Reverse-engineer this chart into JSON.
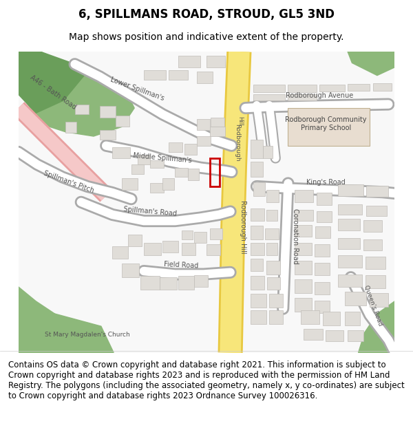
{
  "title": "6, SPILLMANS ROAD, STROUD, GL5 3ND",
  "subtitle": "Map shows position and indicative extent of the property.",
  "footer": "Contains OS data © Crown copyright and database right 2021. This information is subject to Crown copyright and database rights 2023 and is reproduced with the permission of HM Land Registry. The polygons (including the associated geometry, namely x, y co-ordinates) are subject to Crown copyright and database rights 2023 Ordnance Survey 100026316.",
  "map_bg": "#f8f8f8",
  "road_yellow": "#f7e67a",
  "road_yellow_border": "#e8c840",
  "road_pink": "#f5c8c8",
  "road_pink_border": "#e8a0a0",
  "green_color": "#8db87a",
  "green_dark": "#6a9e5a",
  "building_color": "#e0ddd8",
  "building_outline": "#c0bdb8",
  "school_color": "#e8ddd0",
  "red_box": "#cc0000",
  "text_color": "#555555",
  "title_fontsize": 12,
  "subtitle_fontsize": 10,
  "footer_fontsize": 8.5,
  "label_fontsize": 7
}
